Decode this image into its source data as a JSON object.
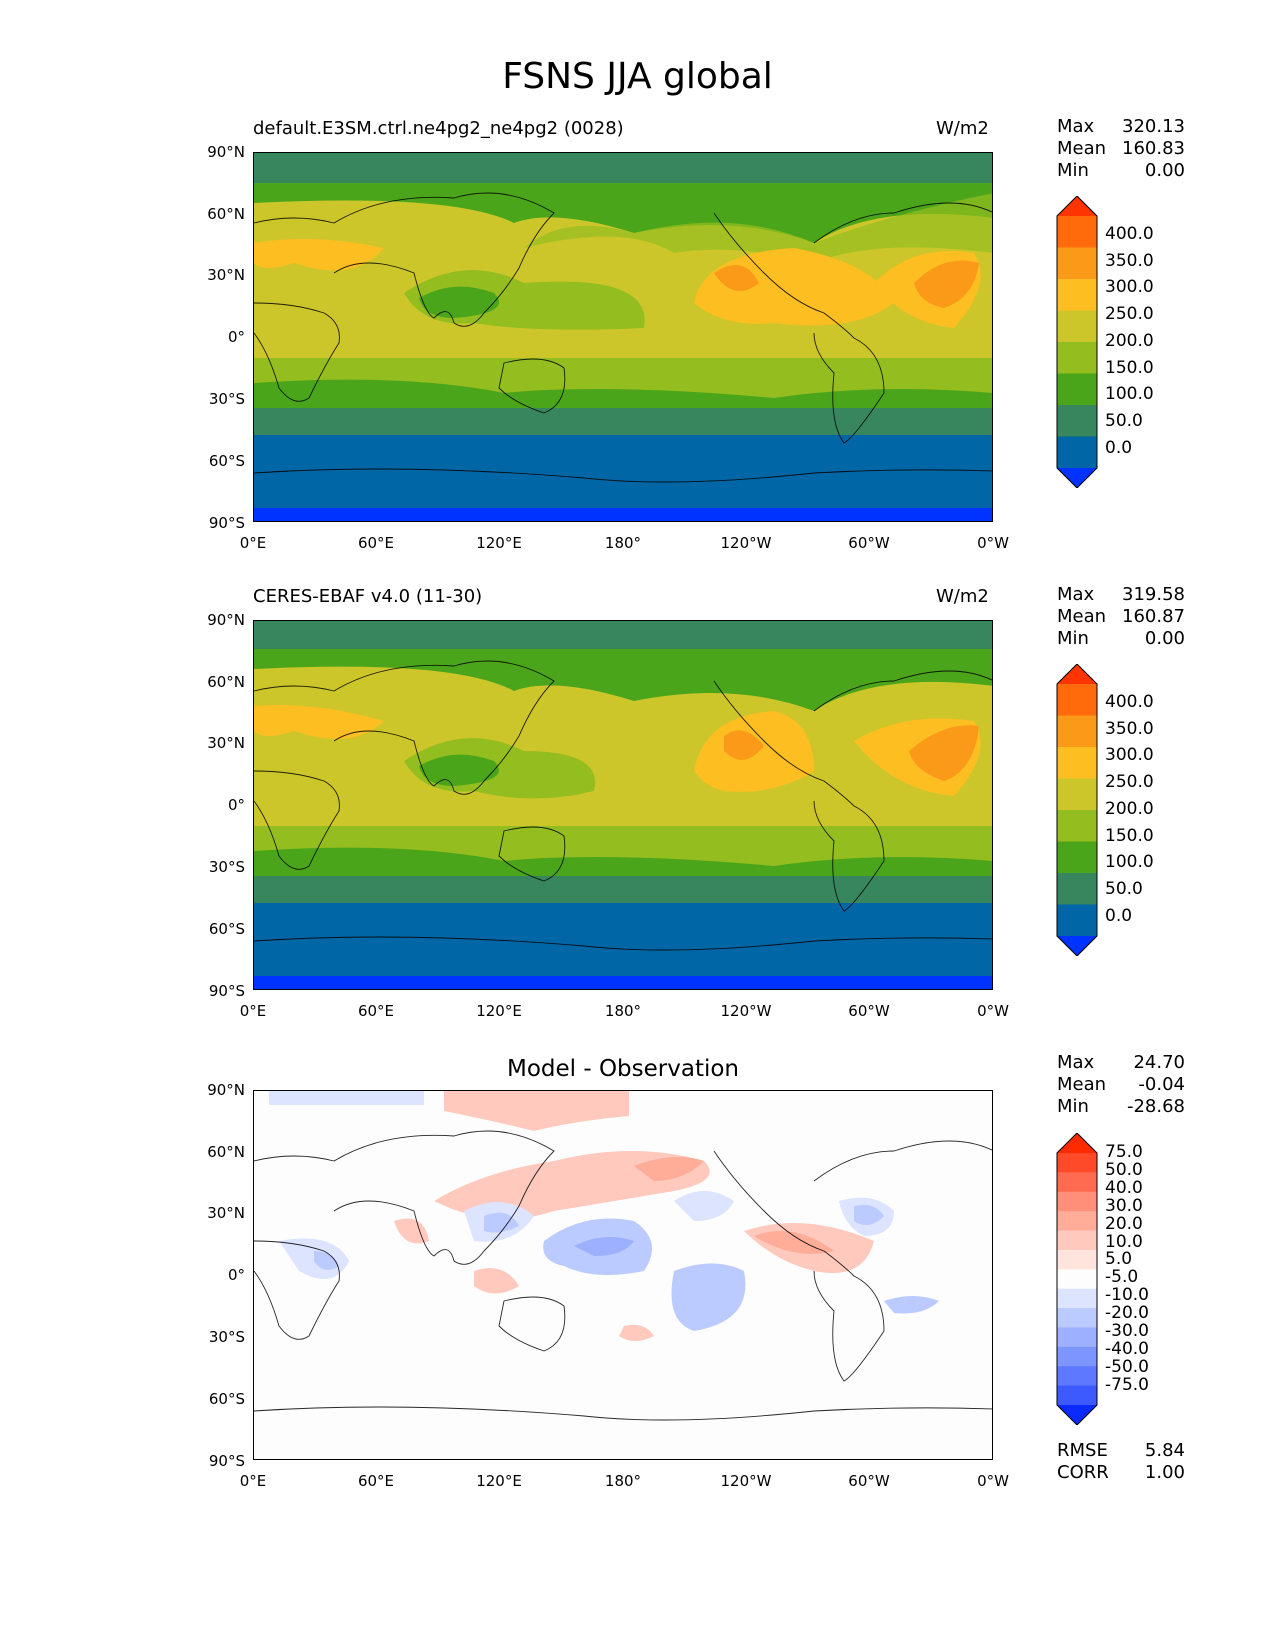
{
  "figure": {
    "title": "FSNS JJA global"
  },
  "panels": [
    {
      "id": "test",
      "left_title": "default.E3SM.ctrl.ne4pg2_ne4pg2 (0028)",
      "right_title": "W/m2",
      "stats": {
        "max_label": "Max",
        "max": "320.13",
        "mean_label": "Mean",
        "mean": "160.83",
        "min_label": "Min",
        "min": "0.00"
      },
      "colorbar_labels": [
        "400.0",
        "350.0",
        "300.0",
        "250.0",
        "200.0",
        "150.0",
        "100.0",
        "50.0",
        "0.0"
      ],
      "colorbar_colors": [
        "#ff3500",
        "#ff6a0a",
        "#fb9a18",
        "#fdbe22",
        "#cdc62a",
        "#94bd1f",
        "#4ba51a",
        "#37865e",
        "#0066a6",
        "#0033ff"
      ]
    },
    {
      "id": "ref",
      "left_title": "CERES-EBAF v4.0 (11-30)",
      "right_title": "W/m2",
      "stats": {
        "max_label": "Max",
        "max": "319.58",
        "mean_label": "Mean",
        "mean": "160.87",
        "min_label": "Min",
        "min": "0.00"
      },
      "colorbar_labels": [
        "400.0",
        "350.0",
        "300.0",
        "250.0",
        "200.0",
        "150.0",
        "100.0",
        "50.0",
        "0.0"
      ],
      "colorbar_colors": [
        "#ff3500",
        "#ff6a0a",
        "#fb9a18",
        "#fdbe22",
        "#cdc62a",
        "#94bd1f",
        "#4ba51a",
        "#37865e",
        "#0066a6",
        "#0033ff"
      ]
    },
    {
      "id": "diff",
      "center_title": "Model - Observation",
      "stats": {
        "max_label": "Max",
        "max": "24.70",
        "mean_label": "Mean",
        "mean": "-0.04",
        "min_label": "Min",
        "min": "-28.68"
      },
      "extra": {
        "rmse_label": "RMSE",
        "rmse": "5.84",
        "corr_label": "CORR",
        "corr": "1.00"
      },
      "colorbar_labels": [
        "75.0",
        "50.0",
        "40.0",
        "30.0",
        "20.0",
        "10.0",
        "5.0",
        "-5.0",
        "-10.0",
        "-20.0",
        "-30.0",
        "-40.0",
        "-50.0",
        "-75.0"
      ],
      "colorbar_colors": [
        "#ff2b00",
        "#ff4a2a",
        "#ff6b50",
        "#ff8f78",
        "#ffac98",
        "#ffc9bd",
        "#ffe4dd",
        "#fdfdfd",
        "#dce4ff",
        "#bccbff",
        "#9cb0ff",
        "#7d95ff",
        "#5e79ff",
        "#3c5aff",
        "#0a2bff"
      ]
    }
  ],
  "axes": {
    "x_ticks": [
      "0°E",
      "60°E",
      "120°E",
      "180°",
      "120°W",
      "60°W",
      "0°W"
    ],
    "y_ticks": [
      "90°N",
      "60°N",
      "30°N",
      "0°",
      "30°S",
      "60°S",
      "90°S"
    ]
  }
}
